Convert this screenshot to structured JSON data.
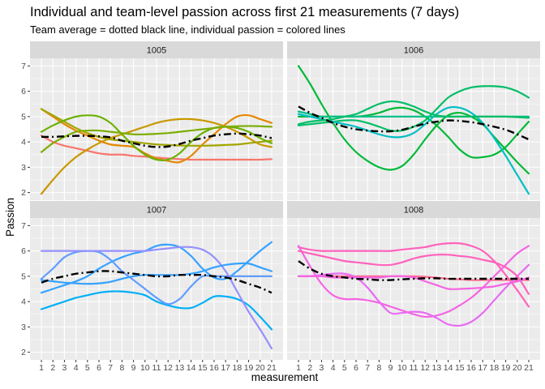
{
  "chart_data": {
    "type": "line",
    "title": "Individual and team-level passion across first 21 measurements (7 days)",
    "subtitle": "Team average = dotted black line, individual passion = colored lines",
    "xlabel": "measurement",
    "ylabel": "Passion",
    "x": [
      1,
      2,
      3,
      4,
      5,
      6,
      7,
      8,
      9,
      10,
      11,
      12,
      13,
      14,
      15,
      16,
      17,
      18,
      19,
      20,
      21
    ],
    "xlim": [
      1,
      21
    ],
    "ylim": [
      1.7,
      7.3
    ],
    "y_ticks": [
      2,
      3,
      4,
      5,
      6,
      7
    ],
    "grid": true,
    "legend": "none",
    "panels": [
      {
        "name": "1005",
        "team_average": [
          4.2,
          4.2,
          4.22,
          4.24,
          4.24,
          4.22,
          4.18,
          4.05,
          3.95,
          3.85,
          3.8,
          3.82,
          3.92,
          4.05,
          4.15,
          4.25,
          4.3,
          4.33,
          4.3,
          4.25,
          4.15
        ],
        "series": [
          {
            "color": "#F8766D",
            "values": [
              4.25,
              4.0,
              3.85,
              3.75,
              3.65,
              3.55,
              3.5,
              3.5,
              3.45,
              3.42,
              3.38,
              3.35,
              3.32,
              3.3,
              3.3,
              3.3,
              3.3,
              3.3,
              3.3,
              3.3,
              3.32
            ]
          },
          {
            "color": "#E58700",
            "values": [
              5.3,
              5.0,
              4.7,
              4.45,
              4.25,
              4.05,
              3.9,
              3.85,
              3.8,
              3.55,
              3.35,
              3.25,
              3.2,
              3.45,
              3.9,
              4.3,
              4.7,
              5.0,
              5.05,
              4.9,
              4.75
            ]
          },
          {
            "color": "#C99800",
            "values": [
              1.95,
              2.5,
              3.0,
              3.4,
              3.7,
              3.95,
              4.15,
              4.3,
              4.45,
              4.6,
              4.75,
              4.85,
              4.9,
              4.9,
              4.85,
              4.75,
              4.6,
              4.4,
              4.15,
              3.9,
              3.8
            ]
          },
          {
            "color": "#A3A500",
            "values": [
              5.3,
              5.05,
              4.8,
              4.55,
              4.35,
              4.2,
              4.1,
              4.05,
              4.0,
              3.95,
              3.9,
              3.88,
              3.86,
              3.85,
              3.85,
              3.86,
              3.88,
              3.9,
              3.95,
              4.0,
              4.05
            ]
          },
          {
            "color": "#6BB100",
            "values": [
              4.4,
              4.65,
              4.85,
              5.0,
              5.05,
              5.0,
              4.75,
              4.3,
              3.85,
              3.5,
              3.3,
              3.3,
              3.55,
              4.0,
              4.35,
              4.55,
              4.6,
              4.55,
              4.4,
              4.15,
              3.95
            ]
          },
          {
            "color": "#7CAE00",
            "values": [
              3.6,
              3.95,
              4.2,
              4.4,
              4.45,
              4.45,
              4.4,
              4.35,
              4.3,
              4.3,
              4.32,
              4.35,
              4.4,
              4.45,
              4.5,
              4.55,
              4.6,
              4.62,
              4.63,
              4.62,
              4.6
            ]
          }
        ]
      },
      {
        "name": "1006",
        "team_average": [
          5.4,
          5.15,
          4.95,
          4.75,
          4.6,
          4.5,
          4.45,
          4.42,
          4.42,
          4.48,
          4.6,
          4.72,
          4.8,
          4.85,
          4.83,
          4.78,
          4.7,
          4.6,
          4.48,
          4.3,
          4.1
        ]
      },
      {
        "name": "1007",
        "team_average": [
          4.75,
          4.9,
          5.0,
          5.1,
          5.15,
          5.2,
          5.2,
          5.15,
          5.1,
          5.05,
          5.0,
          5.0,
          5.05,
          5.05,
          5.05,
          5.0,
          4.95,
          4.85,
          4.7,
          4.55,
          4.35
        ]
      },
      {
        "name": "1008",
        "team_average": [
          5.6,
          5.3,
          5.1,
          5.0,
          4.95,
          4.9,
          4.88,
          4.85,
          4.85,
          4.88,
          4.9,
          4.92,
          4.92,
          4.9,
          4.9,
          4.9,
          4.9,
          4.9,
          4.9,
          4.9,
          4.9
        ]
      }
    ]
  },
  "panel_series": {
    "1006": [
      {
        "color": "#00BA38",
        "values": [
          7.0,
          6.3,
          5.5,
          4.75,
          4.1,
          3.6,
          3.25,
          3.0,
          2.9,
          3.05,
          3.5,
          4.1,
          4.65,
          5.05,
          5.15,
          5.0,
          4.7,
          4.2,
          3.7,
          3.2,
          2.75
        ]
      },
      {
        "color": "#00BE67",
        "values": [
          4.65,
          4.7,
          4.75,
          4.8,
          4.85,
          4.85,
          4.75,
          4.6,
          4.45,
          4.45,
          4.6,
          4.85,
          5.3,
          5.75,
          6.0,
          6.15,
          6.2,
          6.2,
          6.15,
          6.0,
          5.75
        ]
      },
      {
        "color": "#00BA38",
        "values": [
          5.0,
          5.0,
          5.0,
          5.0,
          5.0,
          5.0,
          5.05,
          5.15,
          5.3,
          5.35,
          5.25,
          5.0,
          4.65,
          4.2,
          3.7,
          3.4,
          3.4,
          3.5,
          3.8,
          4.3,
          4.8
        ]
      },
      {
        "color": "#00BFC4",
        "values": [
          5.1,
          5.0,
          4.9,
          4.8,
          4.7,
          4.6,
          4.45,
          4.3,
          4.2,
          4.2,
          4.35,
          4.7,
          5.1,
          5.35,
          5.35,
          5.15,
          4.75,
          4.15,
          3.45,
          2.7,
          1.95
        ]
      },
      {
        "color": "#00C08B",
        "values": [
          5.2,
          5.1,
          5.0,
          5.0,
          5.0,
          5.0,
          5.0,
          5.0,
          5.0,
          5.0,
          5.0,
          5.0,
          5.0,
          5.0,
          5.0,
          5.0,
          5.0,
          5.0,
          5.0,
          5.0,
          5.0
        ]
      },
      {
        "color": "#00BE67",
        "values": [
          4.7,
          4.8,
          4.85,
          4.9,
          5.0,
          5.1,
          5.3,
          5.5,
          5.6,
          5.55,
          5.4,
          5.2,
          5.05,
          5.0,
          5.0,
          5.0,
          5.0,
          5.0,
          5.0,
          4.98,
          4.95
        ]
      }
    ],
    "1007": [
      {
        "color": "#00B0F6",
        "values": [
          3.7,
          3.85,
          4.0,
          4.15,
          4.25,
          4.35,
          4.4,
          4.4,
          4.35,
          4.25,
          4.0,
          3.85,
          3.75,
          3.75,
          3.95,
          4.2,
          4.2,
          4.1,
          3.85,
          3.4,
          2.9
        ]
      },
      {
        "color": "#35A2FF",
        "values": [
          4.35,
          4.5,
          4.65,
          4.8,
          5.0,
          5.3,
          5.55,
          5.75,
          5.9,
          6.0,
          6.2,
          6.25,
          6.15,
          5.8,
          5.3,
          4.95,
          4.9,
          5.2,
          5.6,
          6.0,
          6.35
        ]
      },
      {
        "color": "#619CFF",
        "values": [
          4.9,
          5.3,
          5.75,
          5.95,
          6.0,
          5.95,
          5.65,
          5.2,
          4.85,
          4.5,
          4.15,
          3.9,
          4.1,
          4.6,
          5.0,
          5.0,
          5.0,
          5.0,
          5.0,
          5.0,
          5.0
        ]
      },
      {
        "color": "#9590FF",
        "values": [
          6.0,
          6.0,
          6.0,
          6.0,
          6.0,
          6.0,
          6.0,
          6.0,
          6.0,
          6.0,
          6.05,
          6.1,
          6.15,
          6.15,
          6.05,
          5.75,
          5.2,
          4.4,
          3.6,
          2.9,
          2.15
        ]
      },
      {
        "color": "#35A2FF",
        "values": [
          4.85,
          4.8,
          4.75,
          4.72,
          4.7,
          4.72,
          4.78,
          4.9,
          5.0,
          5.05,
          5.05,
          5.05,
          5.05,
          5.1,
          5.2,
          5.35,
          5.45,
          5.5,
          5.5,
          5.35,
          5.2
        ]
      }
    ],
    "1008": [
      {
        "color": "#FF62BC",
        "values": [
          6.15,
          6.05,
          6.0,
          6.0,
          6.0,
          6.0,
          6.0,
          6.0,
          6.0,
          6.05,
          6.1,
          6.15,
          6.25,
          6.3,
          6.3,
          6.2,
          6.0,
          5.6,
          5.05,
          4.45,
          3.8
        ]
      },
      {
        "color": "#F564E3",
        "values": [
          6.2,
          5.4,
          4.7,
          4.25,
          4.1,
          4.1,
          4.05,
          3.95,
          3.8,
          3.65,
          3.5,
          3.4,
          3.45,
          3.6,
          3.85,
          4.15,
          4.55,
          5.0,
          5.45,
          5.9,
          6.2
        ]
      },
      {
        "color": "#FF6C91",
        "values": [
          5.0,
          5.0,
          5.0,
          5.0,
          5.0,
          5.0,
          5.0,
          5.0,
          5.0,
          5.0,
          5.0,
          4.98,
          4.95,
          4.9,
          4.88,
          4.85,
          4.85,
          4.85,
          4.85,
          4.85,
          4.85
        ]
      },
      {
        "color": "#E76BF3",
        "values": [
          5.0,
          5.0,
          5.05,
          5.1,
          5.1,
          4.95,
          4.55,
          4.0,
          3.55,
          3.55,
          3.6,
          3.55,
          3.35,
          3.1,
          3.05,
          3.2,
          3.55,
          4.05,
          4.55,
          5.0,
          5.45
        ]
      },
      {
        "color": "#FF62BC",
        "values": [
          6.0,
          5.9,
          5.8,
          5.7,
          5.6,
          5.55,
          5.5,
          5.45,
          5.45,
          5.55,
          5.7,
          5.8,
          5.85,
          5.85,
          5.8,
          5.75,
          5.65,
          5.55,
          5.35,
          5.0,
          4.3
        ]
      },
      {
        "color": "#F564E3",
        "values": [
          5.0,
          5.0,
          5.0,
          4.95,
          4.95,
          4.95,
          4.95,
          4.95,
          5.0,
          5.0,
          4.95,
          4.8,
          4.65,
          4.5,
          4.5,
          4.52,
          4.55,
          4.6,
          4.7,
          4.8,
          4.95
        ]
      }
    ]
  },
  "colors": {
    "panel_background": "#EBEBEB",
    "strip_background": "#D9D9D9",
    "grid_major": "#FFFFFF",
    "team_average_line": "#000000"
  }
}
